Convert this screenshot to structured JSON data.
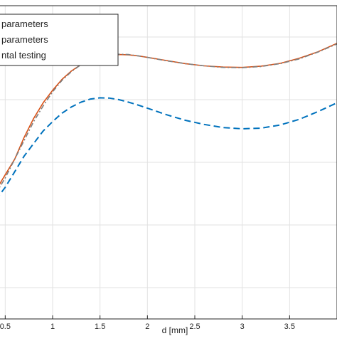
{
  "chart_data": {
    "type": "line",
    "title": "",
    "xlabel": "d [mm]",
    "ylabel": "",
    "xlim": [
      0.4,
      4.0
    ],
    "ylim": [
      0,
      1
    ],
    "grid": true,
    "x_ticks": [
      0.5,
      1,
      1.5,
      2,
      2.5,
      3,
      3.5
    ],
    "x_tick_labels": [
      "0.5",
      "1",
      "1.5",
      "2",
      "2.5",
      "3",
      "3.5"
    ],
    "legend": {
      "placement": "top-left",
      "entries": [
        "parameters",
        "parameters",
        "ntal testing"
      ]
    },
    "series": [
      {
        "name": "parameters",
        "color": "#0072BD",
        "style": "dashed",
        "x": [
          0.4,
          0.5,
          0.6,
          0.7,
          0.8,
          0.9,
          1.0,
          1.1,
          1.2,
          1.3,
          1.4,
          1.5,
          1.6,
          1.7,
          1.8,
          1.9,
          2.0,
          2.2,
          2.4,
          2.6,
          2.8,
          3.0,
          3.2,
          3.4,
          3.6,
          3.8,
          4.0
        ],
        "y": [
          0.38,
          0.42,
          0.47,
          0.52,
          0.56,
          0.6,
          0.63,
          0.657,
          0.677,
          0.692,
          0.702,
          0.706,
          0.705,
          0.7,
          0.692,
          0.683,
          0.673,
          0.652,
          0.634,
          0.621,
          0.611,
          0.607,
          0.609,
          0.619,
          0.637,
          0.662,
          0.69
        ]
      },
      {
        "name": "parameters",
        "color": "#D95319",
        "style": "solid",
        "x": [
          0.4,
          0.5,
          0.6,
          0.7,
          0.8,
          0.9,
          1.0,
          1.1,
          1.2,
          1.3,
          1.4,
          1.5,
          1.6,
          1.7,
          1.8,
          1.9,
          2.0,
          2.2,
          2.4,
          2.6,
          2.8,
          3.0,
          3.2,
          3.4,
          3.6,
          3.8,
          4.0
        ],
        "y": [
          0.41,
          0.46,
          0.51,
          0.58,
          0.64,
          0.69,
          0.73,
          0.765,
          0.792,
          0.812,
          0.826,
          0.836,
          0.841,
          0.844,
          0.843,
          0.84,
          0.835,
          0.825,
          0.815,
          0.808,
          0.804,
          0.803,
          0.807,
          0.816,
          0.832,
          0.853,
          0.88
        ]
      },
      {
        "name": "ntal testing",
        "color": "#7F7F7F",
        "style": "dashdot",
        "x": [
          0.4,
          0.5,
          0.6,
          0.7,
          0.8,
          0.9,
          1.0,
          1.1,
          1.2,
          1.3,
          1.4,
          1.5,
          1.6,
          1.7,
          1.8,
          1.9,
          2.0,
          2.2,
          2.4,
          2.6,
          2.8,
          3.0,
          3.2,
          3.4,
          3.6,
          3.8,
          4.0
        ],
        "y": [
          0.4,
          0.45,
          0.51,
          0.57,
          0.63,
          0.68,
          0.725,
          0.762,
          0.79,
          0.812,
          0.828,
          0.838,
          0.843,
          0.845,
          0.844,
          0.84,
          0.835,
          0.824,
          0.815,
          0.808,
          0.803,
          0.802,
          0.806,
          0.815,
          0.83,
          0.852,
          0.878
        ]
      }
    ]
  }
}
